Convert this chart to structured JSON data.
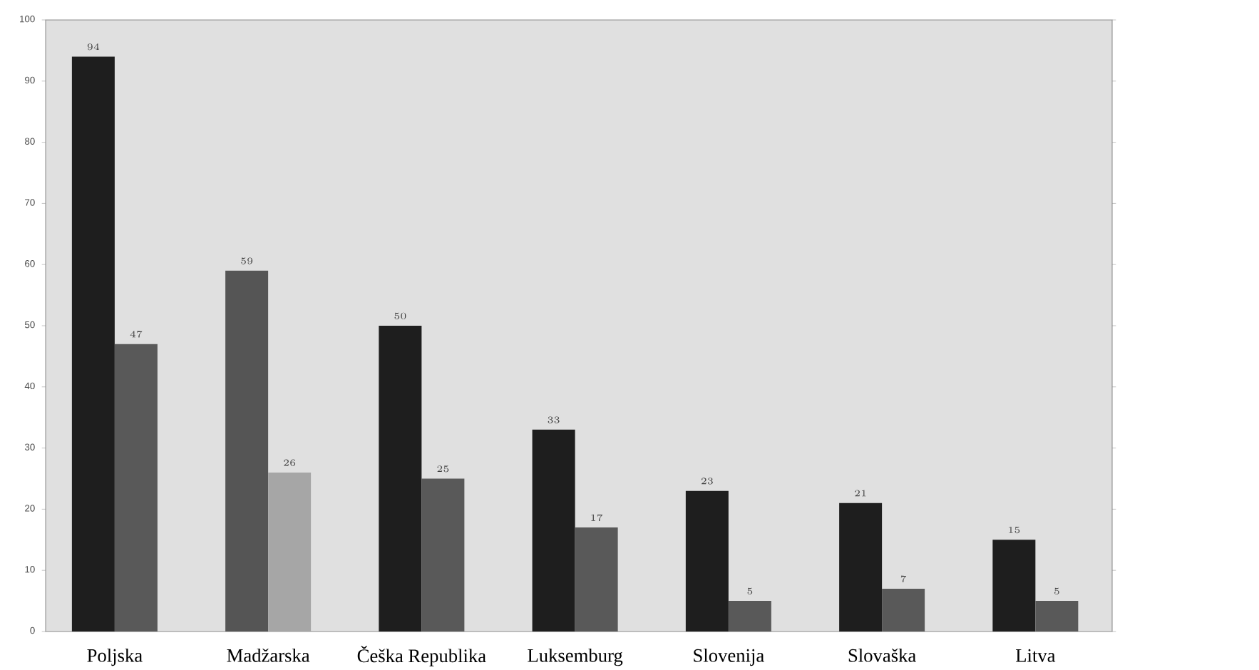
{
  "chart_data": {
    "type": "bar",
    "categories": [
      "Poljska",
      "Madžarska",
      "Češka Republika",
      "Luksemburg",
      "Slovenija",
      "Slovaška",
      "Litva"
    ],
    "series": [
      {
        "colors": [
          "#1e1e1e",
          "#555555",
          "#1e1e1e",
          "#1e1e1e",
          "#1e1e1e",
          "#1e1e1e",
          "#1e1e1e"
        ],
        "values": [
          94,
          59,
          50,
          33,
          23,
          21,
          15
        ]
      },
      {
        "colors": [
          "#595959",
          "#a6a6a6",
          "#595959",
          "#595959",
          "#595959",
          "#595959",
          "#595959"
        ],
        "values": [
          47,
          26,
          25,
          17,
          5,
          7,
          5
        ]
      }
    ],
    "ylim": [
      0,
      100
    ],
    "yticks": [
      0,
      10,
      20,
      30,
      40,
      50,
      60,
      70,
      80,
      90,
      100
    ],
    "data_labels": true,
    "grid": false
  }
}
